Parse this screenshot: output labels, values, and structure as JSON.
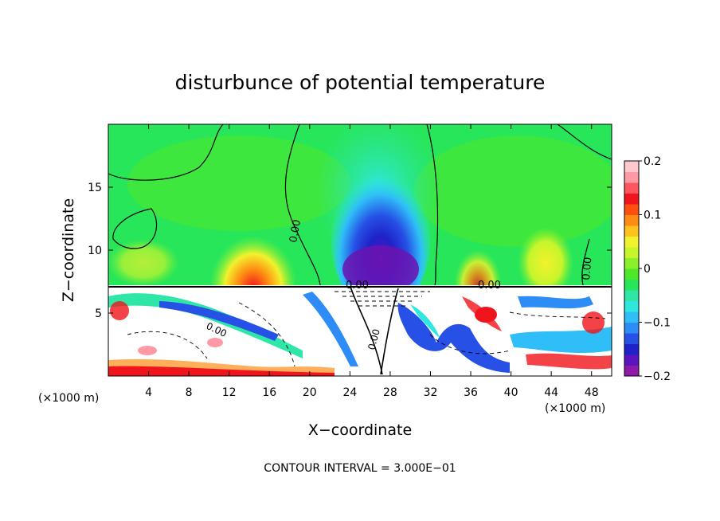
{
  "chart_data": {
    "type": "heatmap",
    "title": "disturbunce of potential temperature",
    "xlabel": "X−coordinate",
    "ylabel": "Z−coordinate",
    "x_unit_left": "(×1000 m)",
    "x_unit_right": "(×1000 m)",
    "xlim": [
      0,
      50
    ],
    "ylim": [
      0,
      20
    ],
    "x_ticks": [
      4,
      8,
      12,
      16,
      20,
      24,
      28,
      32,
      36,
      40,
      44,
      48
    ],
    "x_tick_labels": [
      "4",
      "8",
      "12",
      "16",
      "20",
      "24",
      "28",
      "32",
      "36",
      "40",
      "44",
      "48"
    ],
    "y_ticks": [
      5,
      10,
      15
    ],
    "y_tick_labels": [
      "5",
      "10",
      "15"
    ],
    "colorbar": {
      "range": [
        -0.2,
        0.2
      ],
      "ticks": [
        0.2,
        0.1,
        0,
        -0.1,
        -0.2
      ],
      "tick_labels": [
        "0.2",
        "0.1",
        "0",
        "−0.1",
        "−0.2"
      ],
      "colors": [
        "#8e1aa8",
        "#5a14c0",
        "#1e22c8",
        "#2650e6",
        "#2d8cf5",
        "#2fbef8",
        "#2ee8e0",
        "#2ee6a6",
        "#27e65a",
        "#4ce829",
        "#8af02a",
        "#c6f52c",
        "#f2f22c",
        "#ffc21c",
        "#ff8c12",
        "#ff4e10",
        "#f0141c",
        "#ff5560",
        "#ff9aa4",
        "#ffc8cc"
      ]
    },
    "contour_labels": [
      "0.00",
      "0.00",
      "0.00",
      "0.00",
      "0.00",
      "0.00"
    ],
    "annotation": "CONTOUR INTERVAL = 3.000E−01"
  }
}
